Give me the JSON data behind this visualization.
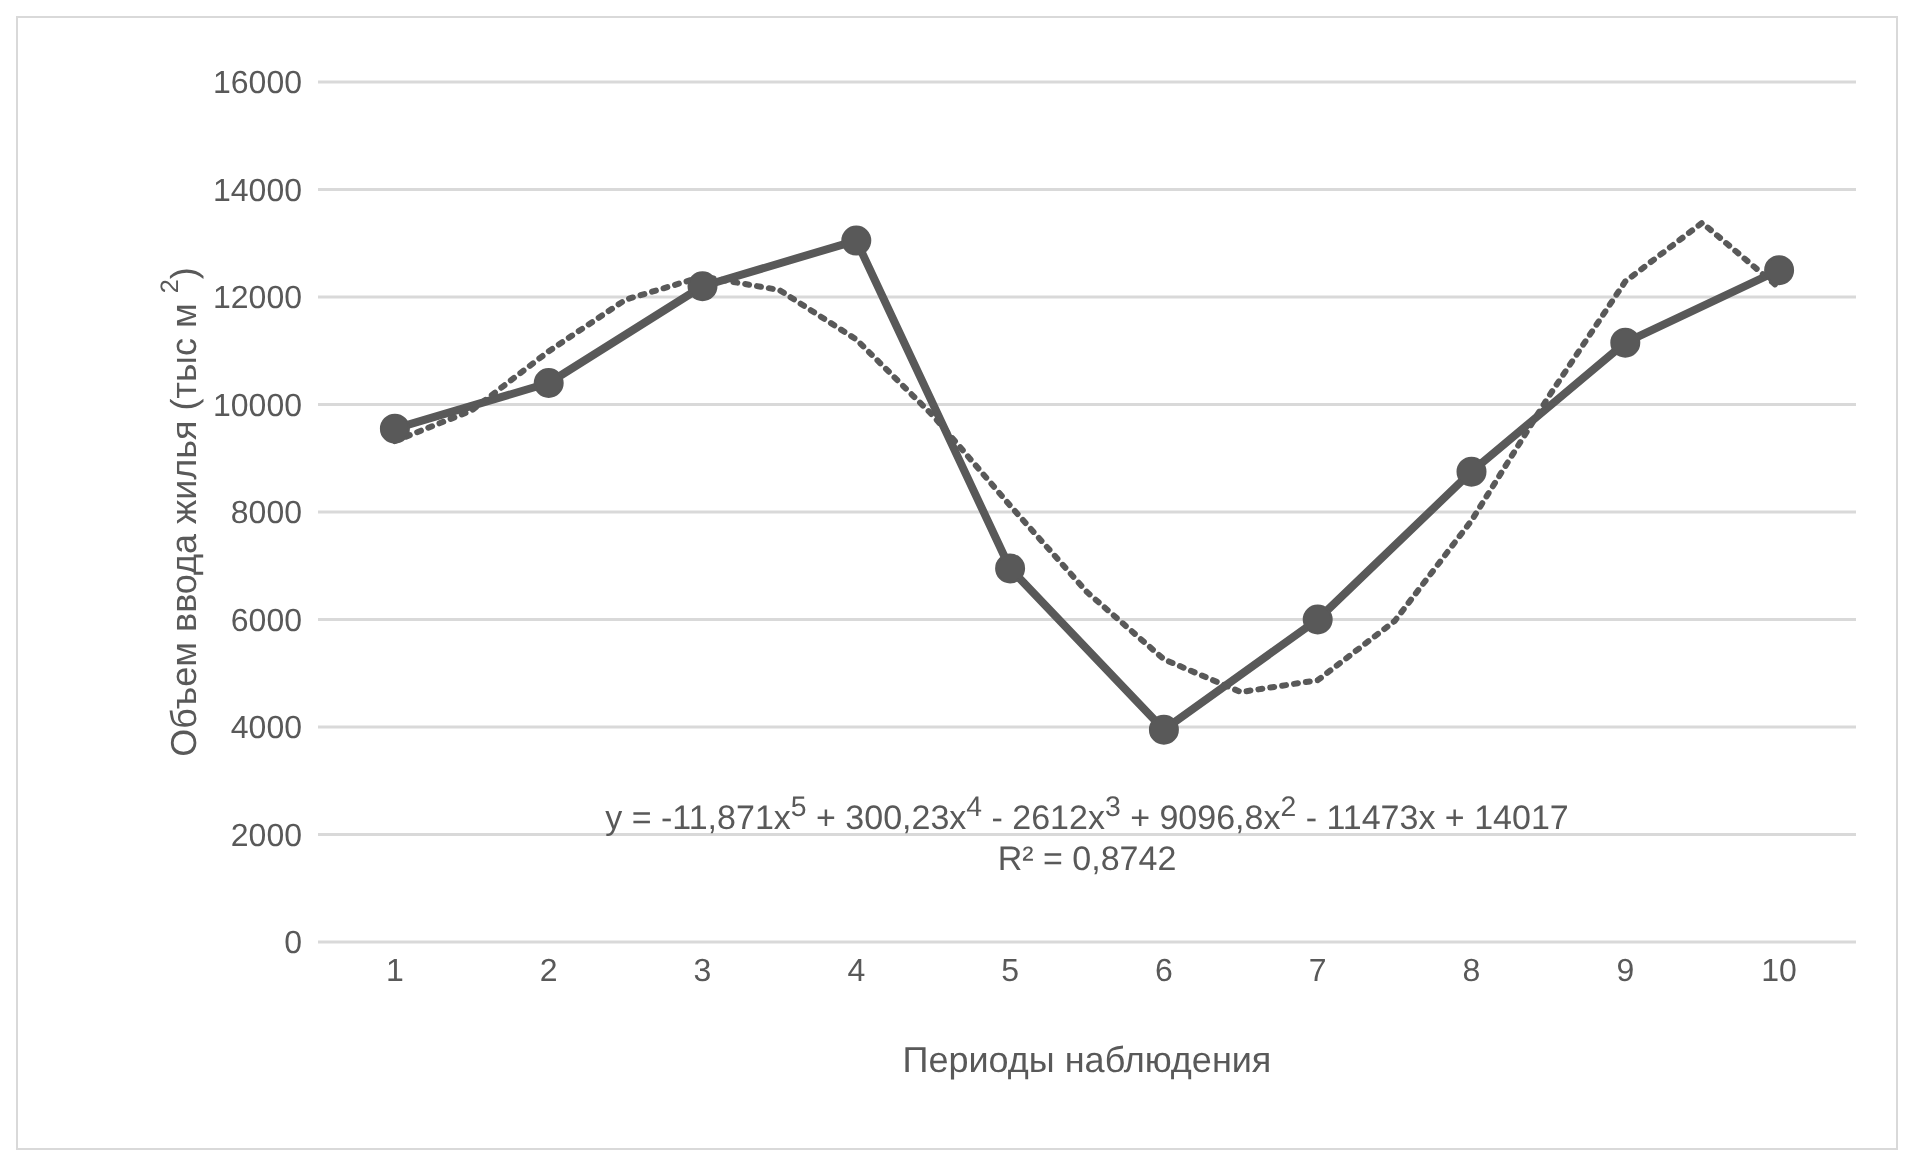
{
  "chart_data": {
    "type": "line",
    "xlabel": "Периоды наблюдения",
    "ylabel": "Объем ввода жилья (тыс м $^{2}$)",
    "xlim": [
      0.5,
      10.5
    ],
    "xticks": [
      1,
      2,
      3,
      4,
      5,
      6,
      7,
      8,
      9,
      10
    ],
    "ylim": [
      0,
      16000
    ],
    "yticks": [
      0,
      2000,
      4000,
      6000,
      8000,
      10000,
      12000,
      14000,
      16000
    ],
    "grid": "y",
    "series": [
      {
        "color": "#595959",
        "marker": "circle",
        "line_style": "solid",
        "x": [
          1,
          2,
          3,
          4,
          5,
          6,
          7,
          8,
          9,
          10
        ],
        "values": [
          9550,
          10400,
          12200,
          13050,
          6950,
          3950,
          6000,
          8750,
          11150,
          12500
        ]
      },
      {
        "type": "line",
        "color": "#595959",
        "marker": "none",
        "line_style": "dotted",
        "x": [
          1,
          1.5,
          2,
          2.5,
          3,
          3.5,
          4,
          4.5,
          5,
          5.5,
          6,
          6.5,
          7,
          7.5,
          8,
          8.5,
          9,
          9.5,
          10
        ],
        "values": [
          9320,
          9890,
          10990,
          11950,
          12380,
          12130,
          11210,
          9790,
          8120,
          6510,
          5260,
          4650,
          4870,
          5970,
          7840,
          10140,
          12290,
          13380,
          12170
        ]
      }
    ],
    "annotations": [
      "y = -11,871x$^{5}$ + 300,23x$^{4}$ - 2612x$^{3}$ + 9096,8x$^{2}$ - 11473x + 14017",
      "R² = 0,8742"
    ]
  }
}
